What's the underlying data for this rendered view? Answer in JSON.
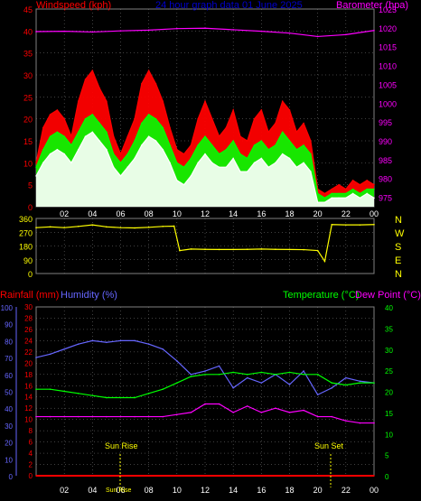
{
  "colors": {
    "red": "#ff0000",
    "green": "#00ff00",
    "white": "#ffffff",
    "magenta": "#ff00ff",
    "yellow": "#ffff00",
    "blue": "#6666ff",
    "grid": "#808080",
    "axis_tick_white": "#ffffff"
  },
  "chart_data": [
    {
      "type": "line",
      "title": "24 hour graph data 01 June 2025",
      "left_label": "Windspeed (kph)",
      "right_label": "Barometer (hpa)",
      "x_ticks": [
        "02",
        "04",
        "06",
        "08",
        "10",
        "12",
        "14",
        "16",
        "18",
        "20",
        "22",
        "00"
      ],
      "y_left_ticks": [
        "0",
        "5",
        "10",
        "15",
        "20",
        "25",
        "30",
        "35",
        "40",
        "45"
      ],
      "y_right_ticks": [
        "975",
        "980",
        "985",
        "990",
        "995",
        "1000",
        "1005",
        "1010",
        "1015",
        "1020",
        "1025"
      ],
      "xlim": [
        0,
        24
      ],
      "ylim_left": [
        0,
        45
      ],
      "ylim_right": [
        972.5,
        1025
      ],
      "series": [
        {
          "name": "Gust",
          "color": "#ff0000",
          "x": [
            0,
            0.5,
            1,
            1.5,
            2,
            2.5,
            3,
            3.5,
            4,
            4.5,
            5,
            5.5,
            6,
            6.5,
            7,
            7.5,
            8,
            8.5,
            9,
            9.5,
            10,
            10.5,
            11,
            11.5,
            12,
            12.5,
            13,
            13.5,
            14,
            14.5,
            15,
            15.5,
            16,
            16.5,
            17,
            17.5,
            18,
            18.5,
            19,
            19.5,
            20,
            20.5,
            21,
            21.5,
            22,
            22.5,
            23,
            23.5,
            24
          ],
          "values": [
            10,
            18,
            21,
            22,
            20,
            16,
            24,
            29,
            31,
            27,
            24,
            16,
            12,
            16,
            20,
            28,
            31,
            28,
            24,
            18,
            13,
            12,
            14,
            20,
            24,
            20,
            16,
            18,
            22,
            16,
            15,
            20,
            22,
            17,
            19,
            24,
            22,
            17,
            19,
            15,
            4,
            3,
            4,
            5,
            4,
            6,
            5,
            6,
            5
          ]
        },
        {
          "name": "Average",
          "color": "#00ff00",
          "x": [
            0,
            0.5,
            1,
            1.5,
            2,
            2.5,
            3,
            3.5,
            4,
            4.5,
            5,
            5.5,
            6,
            6.5,
            7,
            7.5,
            8,
            8.5,
            9,
            9.5,
            10,
            10.5,
            11,
            11.5,
            12,
            12.5,
            13,
            13.5,
            14,
            14.5,
            15,
            15.5,
            16,
            16.5,
            17,
            17.5,
            18,
            18.5,
            19,
            19.5,
            20,
            20.5,
            21,
            21.5,
            22,
            22.5,
            23,
            23.5,
            24
          ],
          "values": [
            9,
            13,
            16,
            17,
            16,
            14,
            17,
            20,
            21,
            19,
            17,
            12,
            10,
            12,
            15,
            19,
            21,
            20,
            18,
            14,
            10,
            9,
            11,
            14,
            16,
            14,
            12,
            13,
            15,
            12,
            11,
            14,
            15,
            13,
            14,
            17,
            15,
            13,
            14,
            12,
            3,
            2,
            3,
            3,
            3,
            4,
            3,
            4,
            4
          ]
        },
        {
          "name": "Windspeed",
          "color": "#ffffff",
          "x": [
            0,
            0.5,
            1,
            1.5,
            2,
            2.5,
            3,
            3.5,
            4,
            4.5,
            5,
            5.5,
            6,
            6.5,
            7,
            7.5,
            8,
            8.5,
            9,
            9.5,
            10,
            10.5,
            11,
            11.5,
            12,
            12.5,
            13,
            13.5,
            14,
            14.5,
            15,
            15.5,
            16,
            16.5,
            17,
            17.5,
            18,
            18.5,
            19,
            19.5,
            20,
            20.5,
            21,
            21.5,
            22,
            22.5,
            23,
            23.5,
            24
          ],
          "values": [
            7,
            10,
            12,
            13,
            12,
            10,
            13,
            16,
            17,
            15,
            13,
            9,
            7,
            9,
            11,
            14,
            16,
            15,
            13,
            10,
            6,
            5,
            7,
            10,
            12,
            10,
            9,
            9,
            11,
            8,
            8,
            10,
            11,
            9,
            10,
            12,
            11,
            9,
            10,
            8,
            1,
            1,
            2,
            2,
            2,
            3,
            2,
            3,
            2
          ]
        },
        {
          "name": "Barometer",
          "color": "#ff00ff",
          "axis": "right",
          "x": [
            0,
            2,
            4,
            6,
            8,
            10,
            12,
            14,
            16,
            18,
            20,
            22,
            24
          ],
          "values": [
            1019,
            1019.1,
            1018.9,
            1019.2,
            1019.4,
            1019.8,
            1019.9,
            1019.5,
            1019.1,
            1018.6,
            1017.7,
            1018.2,
            1019.3
          ]
        }
      ]
    },
    {
      "type": "line",
      "left_ticks": [
        "360",
        "270",
        "180",
        "90",
        "0"
      ],
      "right_labels": [
        "N",
        "W",
        "S",
        "E",
        "N"
      ],
      "ylim": [
        0,
        360
      ],
      "series": [
        {
          "name": "Wind Direction",
          "color": "#ffff00",
          "x": [
            0,
            1,
            2,
            3,
            4,
            5,
            6,
            7,
            8,
            9,
            9.8,
            10.2,
            11,
            12,
            13,
            14,
            15,
            16,
            17,
            18,
            19,
            20,
            20.5,
            21,
            22,
            23,
            24
          ],
          "values": [
            300,
            305,
            300,
            308,
            318,
            305,
            300,
            298,
            302,
            308,
            310,
            150,
            160,
            158,
            157,
            157,
            158,
            160,
            158,
            157,
            156,
            150,
            80,
            320,
            318,
            318,
            320
          ]
        }
      ]
    },
    {
      "type": "line",
      "left_label_1": "Rainfall (mm)",
      "left_label_2": "Humidity (%)",
      "right_label_1": "Temperature (°C)",
      "right_label_2": "Dew Point (°C)",
      "x_ticks": [
        "02",
        "04",
        "06",
        "08",
        "10",
        "12",
        "14",
        "16",
        "18",
        "20",
        "22",
        "00"
      ],
      "y_humidity_ticks": [
        "0",
        "10",
        "20",
        "30",
        "40",
        "50",
        "60",
        "70",
        "80",
        "90",
        "100"
      ],
      "y_rain_ticks": [
        "0",
        "2",
        "4",
        "6",
        "8",
        "10",
        "12",
        "14",
        "16",
        "18",
        "20",
        "22",
        "24",
        "26",
        "28",
        "30"
      ],
      "y_temp_ticks": [
        "0",
        "5",
        "10",
        "15",
        "20",
        "25",
        "30",
        "35",
        "40"
      ],
      "annotations": [
        "Sun Rise",
        "Sun Set",
        "Sun Rise"
      ],
      "series": [
        {
          "name": "Humidity",
          "color": "#6666ff",
          "x": [
            0,
            1,
            2,
            3,
            4,
            5,
            6,
            7,
            8,
            9,
            10,
            11,
            12,
            13,
            14,
            15,
            16,
            17,
            18,
            19,
            20,
            21,
            22,
            23,
            24
          ],
          "values": [
            70,
            72,
            75,
            78,
            80,
            79,
            80,
            80,
            78,
            75,
            68,
            60,
            62,
            65,
            52,
            58,
            55,
            60,
            54,
            62,
            48,
            52,
            58,
            56,
            55
          ]
        },
        {
          "name": "Temperature",
          "color": "#00ff00",
          "x": [
            0,
            1,
            2,
            3,
            4,
            5,
            6,
            7,
            8,
            9,
            10,
            11,
            12,
            13,
            14,
            15,
            16,
            17,
            18,
            19,
            20,
            21,
            22,
            23,
            24
          ],
          "values": [
            20.5,
            20.5,
            20,
            19.5,
            19,
            18.5,
            18.5,
            18.5,
            19.5,
            20.5,
            22,
            23.5,
            24,
            24,
            24.5,
            24,
            24.5,
            24,
            24.5,
            24,
            24,
            22,
            21.5,
            22,
            22
          ]
        },
        {
          "name": "Dew Point",
          "color": "#ff00ff",
          "x": [
            0,
            1,
            2,
            3,
            4,
            5,
            6,
            7,
            8,
            9,
            10,
            11,
            12,
            13,
            14,
            15,
            16,
            17,
            18,
            19,
            20,
            21,
            22,
            23,
            24
          ],
          "values": [
            14,
            14,
            14,
            14,
            14,
            14,
            14,
            14,
            14,
            14,
            14.5,
            15,
            17,
            17,
            15,
            16.5,
            15,
            16,
            15,
            15.5,
            14,
            14,
            13,
            12.5,
            12.5
          ]
        },
        {
          "name": "Rainfall",
          "color": "#ff0000",
          "x": [
            0,
            24
          ],
          "values": [
            0,
            0
          ]
        }
      ]
    }
  ]
}
